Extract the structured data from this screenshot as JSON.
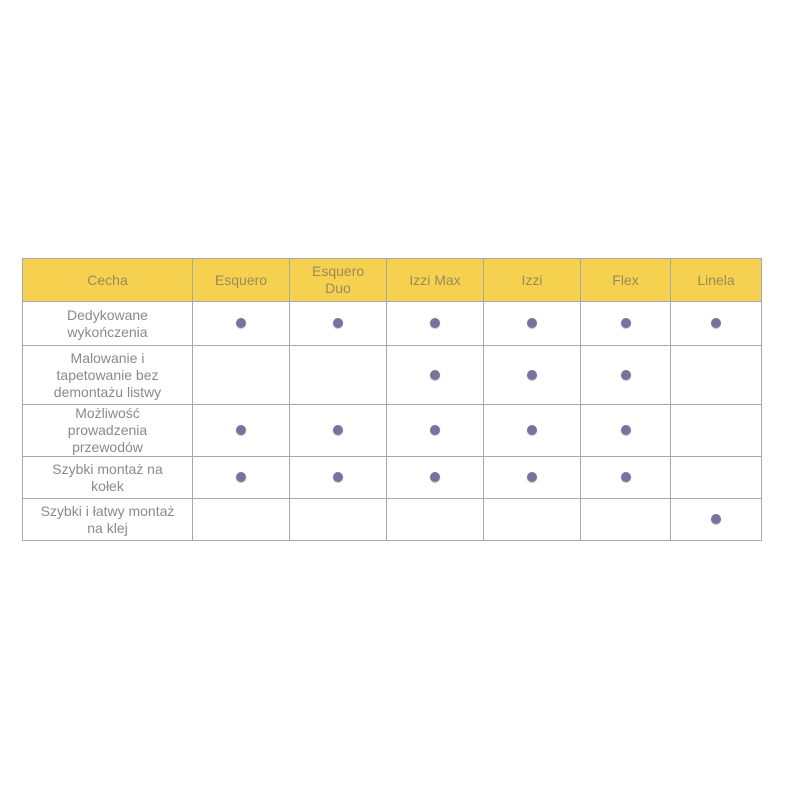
{
  "table": {
    "headers": [
      "Cecha",
      "Esquero",
      "Esquero Duo",
      "Izzi Max",
      "Izzi",
      "Flex",
      "Linela"
    ],
    "rows": [
      {
        "feature": "Dedykowane wykończenia",
        "marks": [
          true,
          true,
          true,
          true,
          true,
          true
        ]
      },
      {
        "feature": "Malowanie i tapetowanie bez demontażu listwy",
        "marks": [
          false,
          false,
          true,
          true,
          true,
          false
        ]
      },
      {
        "feature": "Możliwość prowadzenia przewodów",
        "marks": [
          true,
          true,
          true,
          true,
          true,
          false
        ]
      },
      {
        "feature": "Szybki montaż na kołek",
        "marks": [
          true,
          true,
          true,
          true,
          true,
          false
        ]
      },
      {
        "feature": "Szybki i łatwy montaż na klej",
        "marks": [
          false,
          false,
          false,
          false,
          false,
          true
        ]
      }
    ]
  },
  "colors": {
    "header_bg": "#f5d14f",
    "dot": "#76739f",
    "text": "#8a8a8a"
  },
  "icons": {
    "mark": "dot-icon"
  }
}
